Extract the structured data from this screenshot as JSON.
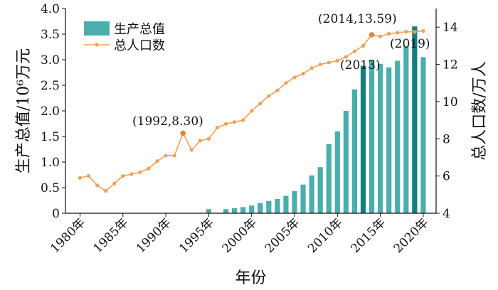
{
  "chart_data": {
    "type": "bar+line",
    "xlabel": "年份",
    "ylabel_left": "生产总值/10⁶万元",
    "ylabel_right": "总人口数/万人",
    "ylim_left": [
      0,
      4.0
    ],
    "ylim_right": [
      4,
      15
    ],
    "yticks_left": [
      "0",
      "0.5",
      "1.0",
      "1.5",
      "2.0",
      "2.5",
      "3.0",
      "3.5",
      "4.0"
    ],
    "yticks_right": [
      "4",
      "6",
      "8",
      "10",
      "12",
      "14"
    ],
    "xticks": [
      "1980年",
      "1985年",
      "1990年",
      "1995年",
      "2000年",
      "2005年",
      "2010年",
      "2015年",
      "2020年"
    ],
    "legend": {
      "position": "top-left",
      "entries": [
        "生产总值",
        "总人口数"
      ]
    },
    "colors": {
      "bar": "#4aaeac",
      "bar_highlight": "#137f7d",
      "line": "#f2a055",
      "line_highlight": "#e8842f"
    },
    "x": [
      1980,
      1981,
      1982,
      1983,
      1984,
      1985,
      1986,
      1987,
      1988,
      1989,
      1990,
      1991,
      1992,
      1993,
      1994,
      1995,
      1996,
      1997,
      1998,
      1999,
      2000,
      2001,
      2002,
      2003,
      2004,
      2005,
      2006,
      2007,
      2008,
      2009,
      2010,
      2011,
      2012,
      2013,
      2014,
      2015,
      2016,
      2017,
      2018,
      2019,
      2020
    ],
    "series": [
      {
        "name": "生产总值",
        "type": "bar",
        "axis": "left",
        "values": [
          0,
          0,
          0,
          0,
          0,
          0,
          0,
          0,
          0,
          0,
          0,
          0,
          0,
          0,
          0,
          0.08,
          0,
          0.08,
          0.1,
          0.12,
          0.15,
          0.2,
          0.24,
          0.28,
          0.34,
          0.43,
          0.56,
          0.74,
          0.9,
          1.35,
          1.6,
          2.0,
          2.42,
          2.88,
          3.0,
          2.92,
          2.85,
          2.98,
          3.27,
          3.65,
          3.05
        ]
      },
      {
        "name": "总人口数",
        "type": "line",
        "axis": "right",
        "values": [
          5.9,
          6.0,
          5.5,
          5.2,
          5.6,
          6.0,
          6.1,
          6.2,
          6.4,
          6.8,
          7.1,
          7.1,
          8.3,
          7.4,
          7.9,
          8.0,
          8.6,
          8.8,
          8.9,
          9.0,
          9.5,
          9.9,
          10.3,
          10.6,
          11.0,
          11.3,
          11.5,
          11.8,
          12.0,
          12.1,
          12.2,
          12.4,
          12.7,
          13.0,
          13.59,
          13.5,
          13.65,
          13.7,
          13.75,
          13.75,
          13.8
        ]
      }
    ],
    "highlight_bars": [
      2013,
      2019
    ],
    "highlight_points": [
      1992,
      2014
    ],
    "annotations": [
      "(1992,8.30)",
      "(2014,13.59)",
      "(2013)",
      "(2019)"
    ]
  }
}
